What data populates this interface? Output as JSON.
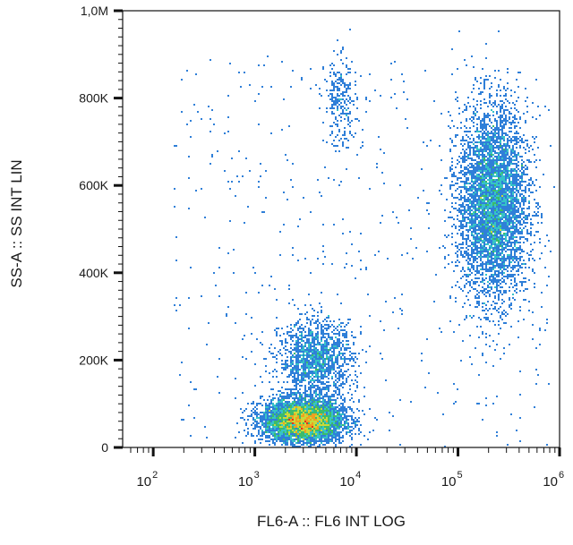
{
  "chart_data": {
    "type": "scatter",
    "subtype": "flow-cytometry density dot plot",
    "title": "",
    "xlabel": "FL6-A :: FL6 INT LOG",
    "ylabel": "SS-A :: SS INT LIN",
    "x_scale": "log",
    "y_scale": "linear",
    "xlim": [
      50,
      1000000
    ],
    "ylim": [
      0,
      1000000
    ],
    "x_ticks": [
      {
        "value": 100,
        "base": "10",
        "exp": "2"
      },
      {
        "value": 1000,
        "base": "10",
        "exp": "3"
      },
      {
        "value": 10000,
        "base": "10",
        "exp": "4"
      },
      {
        "value": 100000,
        "base": "10",
        "exp": "5"
      },
      {
        "value": 1000000,
        "base": "10",
        "exp": "6"
      }
    ],
    "y_ticks": [
      {
        "value": 0,
        "label": "0"
      },
      {
        "value": 200000,
        "label": "200K"
      },
      {
        "value": 400000,
        "label": "400K"
      },
      {
        "value": 600000,
        "label": "600K"
      },
      {
        "value": 800000,
        "label": "800K"
      },
      {
        "value": 1000000,
        "label": "1,0M"
      }
    ],
    "grid": false,
    "legend": "none",
    "color_scale": [
      "#1f3fb0",
      "#2f7fd8",
      "#36c3c7",
      "#3dbb6a",
      "#c9d93a",
      "#f0a020",
      "#e03020"
    ],
    "populations": [
      {
        "center_x": 3000,
        "center_y": 60000,
        "spread_x_log10": 0.2,
        "spread_y": 25000,
        "relative_density": 1.0
      },
      {
        "center_x": 4000,
        "center_y": 200000,
        "spread_x_log10": 0.18,
        "spread_y": 45000,
        "relative_density": 0.3
      },
      {
        "center_x": 220000,
        "center_y": 560000,
        "spread_x_log10": 0.17,
        "spread_y": 110000,
        "relative_density": 0.95
      },
      {
        "center_x": 7000,
        "center_y": 790000,
        "spread_x_log10": 0.08,
        "spread_y": 50000,
        "relative_density": 0.05
      }
    ]
  }
}
